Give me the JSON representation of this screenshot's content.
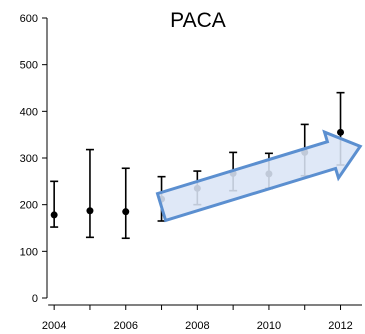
{
  "chart_data": {
    "type": "scatter",
    "title": "PACA",
    "xlabel": "",
    "ylabel": "",
    "xlim": [
      2003.8,
      2012.6
    ],
    "ylim": [
      0,
      600
    ],
    "x_ticks": [
      2004,
      2005,
      2006,
      2007,
      2008,
      2009,
      2010,
      2011,
      2012
    ],
    "x_tick_labels": [
      "2004",
      "2006",
      "2008",
      "2010",
      "2012"
    ],
    "x_tick_label_values": [
      2004,
      2006,
      2008,
      2010,
      2012
    ],
    "y_ticks": [
      0,
      100,
      200,
      300,
      400,
      500,
      600
    ],
    "y_tick_labels": [
      "0",
      "100",
      "200",
      "300",
      "400",
      "500",
      "600"
    ],
    "grid": false,
    "series": [
      {
        "points": [
          {
            "x": 2004,
            "y": 178,
            "low": 152,
            "high": 250
          },
          {
            "x": 2005,
            "y": 187,
            "low": 130,
            "high": 318
          },
          {
            "x": 2006,
            "y": 185,
            "low": 128,
            "high": 278
          },
          {
            "x": 2007,
            "y": 212,
            "low": 165,
            "high": 260
          },
          {
            "x": 2008,
            "y": 235,
            "low": 200,
            "high": 272
          },
          {
            "x": 2009,
            "y": 267,
            "low": 230,
            "high": 312
          },
          {
            "x": 2010,
            "y": 266,
            "low": 235,
            "high": 310
          },
          {
            "x": 2011,
            "y": 312,
            "low": 262,
            "high": 372
          },
          {
            "x": 2012,
            "y": 355,
            "low": 285,
            "high": 440
          }
        ]
      }
    ],
    "annotations": [
      {
        "kind": "trend-arrow",
        "from": {
          "x": 2007,
          "y": 195
        },
        "to": {
          "x": 2012.55,
          "y": 325
        },
        "fill": "#dbe5f6",
        "stroke": "#5b8fd0"
      }
    ],
    "colors": {
      "points": "#000000",
      "axis": "#000000",
      "arrow_fill": "#dbe5f6",
      "arrow_stroke": "#5b8fd0"
    }
  }
}
